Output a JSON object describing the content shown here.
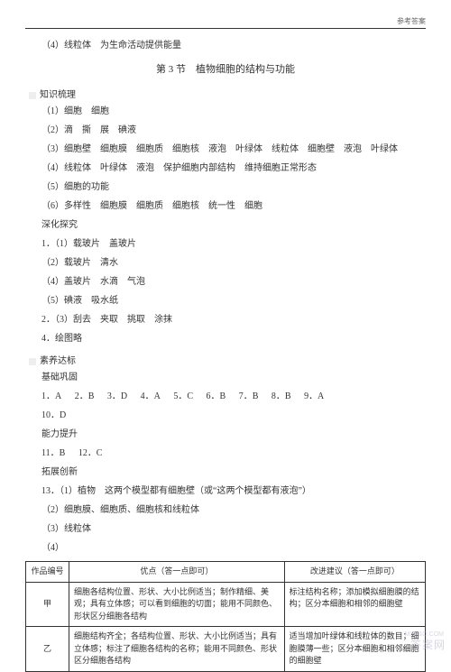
{
  "header": {
    "label": "参考答案"
  },
  "pre_section": {
    "item4": "（4）线粒体　为生命活动提供能量"
  },
  "section_title": "第 3 节　植物细胞的结构与功能",
  "knowledge": {
    "heading": "知识梳理",
    "items": {
      "i1": "（1）细胞　细胞",
      "i2": "（2）滴　撕　展　碘液",
      "i3": "（3）细胞壁　细胞膜　细胞质　细胞核　液泡　叶绿体　线粒体　细胞壁　液泡　叶绿体",
      "i4": "（4）线粒体　叶绿体　液泡　保护细胞内部结构　维持细胞正常形态",
      "i5": "（5）细胞的功能",
      "i6": "（6）多样性　细胞膜　细胞质　细胞核　统一性　细胞"
    }
  },
  "deepen": {
    "heading": "深化探究",
    "lines": {
      "l1": "1．（1）载玻片　盖玻片",
      "l2": "（2）载玻片　清水",
      "l3": "（4）盖玻片　水滴　气泡",
      "l4": "（5）碘液　吸水纸",
      "l5": "2．（3）刮去　夹取　挑取　涂抹",
      "l6": "4．绘图略"
    }
  },
  "attain": {
    "heading": "素养达标",
    "basic_label": "基础巩固",
    "basic_row1": {
      "a1": "1．A",
      "a2": "2．B",
      "a3": "3．D",
      "a4": "4．A",
      "a5": "5．C",
      "a6": "6．B",
      "a7": "7．B",
      "a8": "8．B",
      "a9": "9．A"
    },
    "basic_row2": "10．D",
    "ability_label": "能力提升",
    "ability_row": {
      "a11": "11．B",
      "a12": "12．C"
    },
    "expand_label": "拓展创新",
    "l13_1": "13．（1）植物　这两个模型都有细胞壁（或“这两个模型都有液泡”）",
    "l13_2": "（2）细胞膜、细胞质、细胞核和线粒体",
    "l13_3": "（3）线粒体",
    "l13_4": "（4）"
  },
  "table": {
    "headers": {
      "c1": "作品编号",
      "c2": "优点（答一点即可）",
      "c3": "改进建议（答一点即可）"
    },
    "rows": [
      {
        "label": "甲",
        "merit": "细胞各结构位置、形状、大小比例适当；制作精细、美观；具有立体感；可以看到细胞的切面；能用不同颜色、形状区分细胞各结构",
        "suggest": "标注结构名称；添加模拟细胞膜的结构；区分本细胞和相邻的细胞壁"
      },
      {
        "label": "乙",
        "merit": "细胞结构齐全；各结构位置、形状、大小比例适当；具有立体感；标注了细胞各结构的名称；能用不同颜色、形状区分细胞各结构",
        "suggest": "适当增加叶绿体和线粒体的数目；细胞膜薄一些；区分本细胞和相邻细胞的细胞壁"
      }
    ]
  },
  "watermark": {
    "main": "答案网",
    "sub": "MXE&O.COM"
  }
}
